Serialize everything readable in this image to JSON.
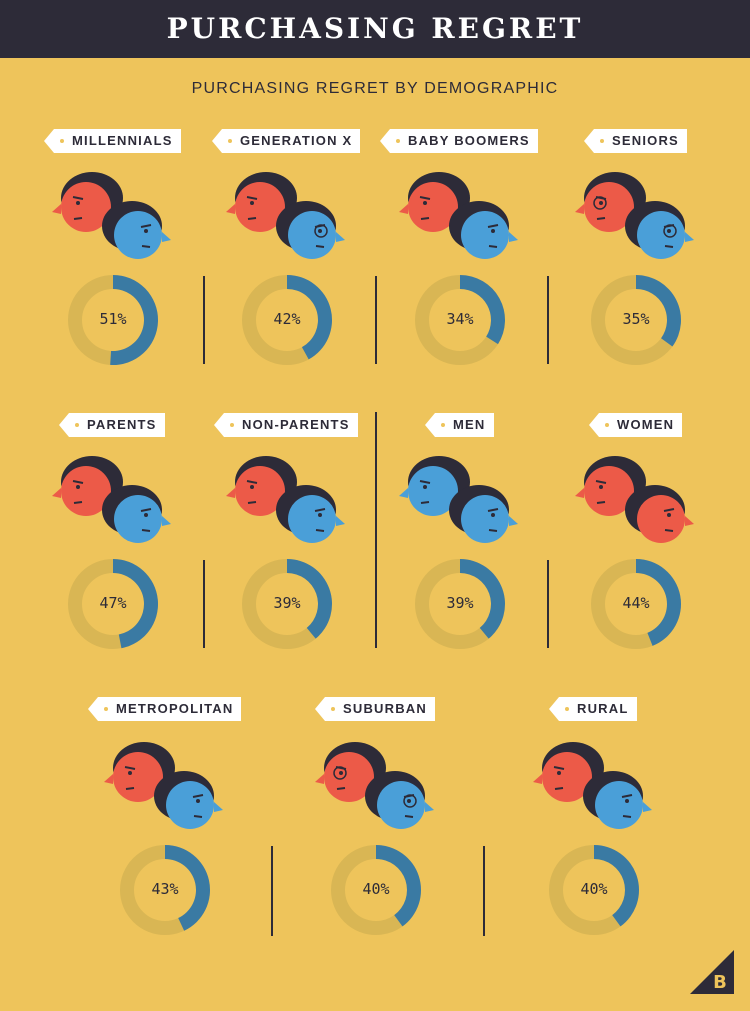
{
  "title": "PURCHASING REGRET",
  "chart_data": {
    "type": "pie",
    "title": "PURCHASING REGRET BY DEMOGRAPHIC",
    "unit": "%",
    "categories": [
      "MILLENNIALS",
      "GENERATION X",
      "BABY BOOMERS",
      "SENIORS",
      "PARENTS",
      "NON-PARENTS",
      "MEN",
      "WOMEN",
      "METROPOLITAN",
      "SUBURBAN",
      "RURAL"
    ],
    "values": [
      51,
      42,
      34,
      35,
      47,
      39,
      39,
      44,
      43,
      40,
      40
    ],
    "labels": [
      "51%",
      "42%",
      "34%",
      "35%",
      "47%",
      "39%",
      "39%",
      "44%",
      "43%",
      "40%",
      "40%"
    ]
  },
  "colors": {
    "background": "#eec45b",
    "banner": "#2d2b38",
    "regret": "#3a7aa3",
    "remainder": "#d9b654",
    "face_red": "#ec5a48",
    "face_blue": "#4a9fd8",
    "hair": "#2d2b38"
  },
  "faces": [
    {
      "front": "red-face-with-dark-hair",
      "back": "blue-face-bearded"
    },
    {
      "front": "red-face-long-hair",
      "back": "blue-face-with-glasses"
    },
    {
      "front": "red-face-dark-hair",
      "back": "blue-face-dark-hair"
    },
    {
      "front": "red-face-white-curly-hair-glasses",
      "back": "blue-face-white-hair-glasses"
    },
    {
      "front": "red-face-hair-bun",
      "back": "blue-face-dark-hair"
    },
    {
      "front": "red-face-dark-hair",
      "back": "blue-face-dark-hair"
    },
    {
      "front": "blue-face-spiky-hair",
      "back": "blue-face-stubble"
    },
    {
      "front": "red-face-ponytail",
      "back": "red-face-bob-hair"
    },
    {
      "front": "red-face-afro-earbuds",
      "back": "blue-face-stubble"
    },
    {
      "front": "red-face-with-glasses",
      "back": "blue-face-with-glasses"
    },
    {
      "front": "red-face-cowboy-hat",
      "back": "blue-face-cap"
    }
  ],
  "logo": "b-corner-logo"
}
